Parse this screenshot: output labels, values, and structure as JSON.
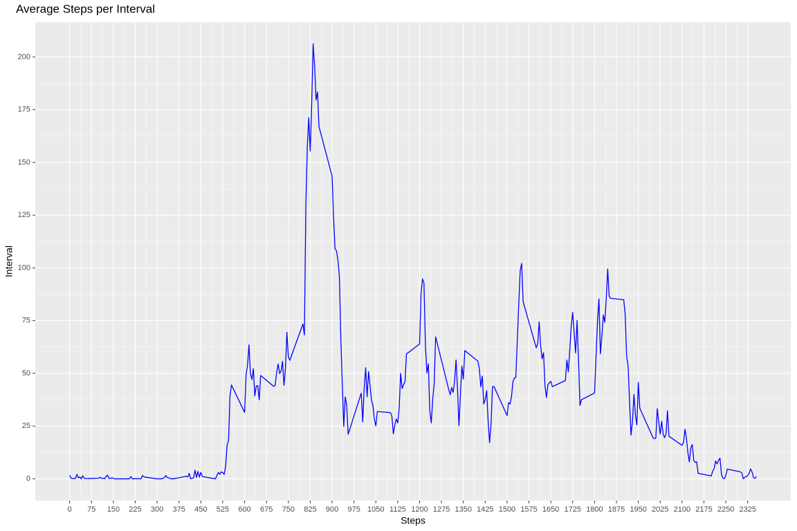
{
  "chart_data": {
    "type": "line",
    "title": "Average Steps per Interval",
    "x_label": "Steps",
    "y_label": "Interval",
    "x": [
      0,
      5,
      10,
      15,
      20,
      25,
      30,
      35,
      40,
      45,
      50,
      55,
      100,
      105,
      110,
      115,
      120,
      125,
      130,
      135,
      140,
      145,
      150,
      155,
      200,
      205,
      210,
      215,
      220,
      225,
      230,
      235,
      240,
      245,
      250,
      255,
      300,
      305,
      310,
      315,
      320,
      325,
      330,
      335,
      340,
      345,
      350,
      355,
      400,
      405,
      410,
      415,
      420,
      425,
      430,
      435,
      440,
      445,
      450,
      455,
      500,
      505,
      510,
      515,
      520,
      525,
      530,
      535,
      540,
      545,
      550,
      555,
      600,
      605,
      610,
      615,
      620,
      625,
      630,
      635,
      640,
      645,
      650,
      655,
      700,
      705,
      710,
      715,
      720,
      725,
      730,
      735,
      740,
      745,
      750,
      755,
      800,
      805,
      810,
      815,
      820,
      825,
      830,
      835,
      840,
      845,
      850,
      855,
      900,
      905,
      910,
      915,
      920,
      925,
      930,
      935,
      940,
      945,
      950,
      955,
      1000,
      1005,
      1010,
      1015,
      1020,
      1025,
      1030,
      1035,
      1040,
      1045,
      1050,
      1055,
      1100,
      1105,
      1110,
      1115,
      1120,
      1125,
      1130,
      1135,
      1140,
      1145,
      1150,
      1155,
      1200,
      1205,
      1210,
      1215,
      1220,
      1225,
      1230,
      1235,
      1240,
      1245,
      1250,
      1255,
      1300,
      1305,
      1310,
      1315,
      1320,
      1325,
      1330,
      1335,
      1340,
      1345,
      1350,
      1355,
      1400,
      1405,
      1410,
      1415,
      1420,
      1425,
      1430,
      1435,
      1440,
      1445,
      1450,
      1455,
      1500,
      1505,
      1510,
      1515,
      1520,
      1525,
      1530,
      1535,
      1540,
      1545,
      1550,
      1555,
      1600,
      1605,
      1610,
      1615,
      1620,
      1625,
      1630,
      1635,
      1640,
      1645,
      1650,
      1655,
      1700,
      1705,
      1710,
      1715,
      1720,
      1725,
      1730,
      1735,
      1740,
      1745,
      1750,
      1755,
      1800,
      1805,
      1810,
      1815,
      1820,
      1825,
      1830,
      1835,
      1840,
      1845,
      1850,
      1855,
      1900,
      1905,
      1910,
      1915,
      1920,
      1925,
      1930,
      1935,
      1940,
      1945,
      1950,
      1955,
      2000,
      2005,
      2010,
      2015,
      2020,
      2025,
      2030,
      2035,
      2040,
      2045,
      2050,
      2055,
      2100,
      2105,
      2110,
      2115,
      2120,
      2125,
      2130,
      2135,
      2140,
      2145,
      2150,
      2155,
      2200,
      2205,
      2210,
      2215,
      2220,
      2225,
      2230,
      2235,
      2240,
      2245,
      2250,
      2255,
      2300,
      2305,
      2310,
      2315,
      2320,
      2325,
      2330,
      2335,
      2340,
      2345,
      2350,
      2355
    ],
    "series": [
      {
        "color": "#0000ff",
        "values": [
          1.7,
          0.3,
          0.1,
          0.2,
          0.1,
          2.1,
          0.5,
          0.9,
          0,
          1.5,
          0.3,
          0.1,
          0.3,
          0.7,
          0.2,
          0.3,
          0,
          1.1,
          1.8,
          0.2,
          0.2,
          0.4,
          0.3,
          0,
          0,
          0,
          1.1,
          0,
          0,
          0.1,
          0,
          0.2,
          0,
          0,
          1.6,
          0.9,
          0,
          0,
          0,
          0,
          0.2,
          0.6,
          1.6,
          0.6,
          0.5,
          0.1,
          0,
          0,
          1.2,
          0.9,
          2.6,
          0,
          0.3,
          0.4,
          4.1,
          0.7,
          3.5,
          0.8,
          3.1,
          1.1,
          0,
          1.6,
          3,
          2.2,
          3.3,
          3,
          2.1,
          6.1,
          16,
          18.3,
          39.5,
          44.5,
          31.5,
          49.3,
          53.8,
          63.5,
          50,
          47.1,
          52.2,
          39.3,
          44,
          44.2,
          37.4,
          49,
          43.8,
          44.4,
          50.5,
          54.5,
          49.9,
          51,
          55.7,
          44.3,
          52.3,
          69.5,
          57.8,
          56.2,
          73.4,
          68.2,
          129.4,
          157.5,
          171.2,
          155.4,
          177.3,
          206.2,
          195.9,
          179.6,
          183.4,
          167,
          143.5,
          124,
          109.1,
          108.1,
          103.7,
          96,
          66.2,
          45.2,
          24.8,
          38.8,
          35,
          21.1,
          40.6,
          27,
          42.4,
          52.7,
          38.9,
          50.8,
          44.3,
          37.4,
          34.7,
          28.3,
          25.1,
          31.9,
          31.4,
          29.7,
          21.3,
          25.5,
          28.4,
          26.5,
          33.4,
          50,
          42.8,
          44.7,
          46,
          59.2,
          63.9,
          87.7,
          94.8,
          92.8,
          63.4,
          50.2,
          54.5,
          32.4,
          26.5,
          37.7,
          45.1,
          67.3,
          42.3,
          39.9,
          43.3,
          41,
          46.2,
          56.4,
          42.8,
          25.1,
          40,
          53.5,
          47.3,
          60.8,
          55.8,
          52,
          43.6,
          48.7,
          35.5,
          37.5,
          41.8,
          27.5,
          17.1,
          26.1,
          43.6,
          43.8,
          30,
          36.1,
          35.5,
          38.8,
          46,
          47.8,
          48.1,
          65.3,
          82.9,
          98.7,
          102.1,
          84,
          62.1,
          64.1,
          74.5,
          63.2,
          56.9,
          59.8,
          43.9,
          38.6,
          44.7,
          45.5,
          46.2,
          43.7,
          46.6,
          56.3,
          50.7,
          61.2,
          72.7,
          78.9,
          68.9,
          59.7,
          75.1,
          56.5,
          34.8,
          37.5,
          40.7,
          58,
          74.7,
          85.3,
          59.3,
          67.8,
          77.7,
          74.2,
          85.3,
          99.5,
          86.6,
          85.6,
          84.9,
          77.8,
          58,
          53.4,
          36.3,
          20.7,
          27.4,
          40,
          30.2,
          25.5,
          45.7,
          33.5,
          19.6,
          19,
          19.3,
          33.3,
          26.8,
          21.2,
          27.3,
          21.3,
          19.5,
          21.3,
          32.3,
          20.2,
          15.9,
          17.2,
          23.5,
          19.2,
          12.5,
          8,
          14.7,
          16.3,
          8.7,
          7.8,
          8.1,
          2.6,
          1.4,
          3.7,
          4.8,
          8.5,
          7.1,
          8.7,
          9.8,
          2.2,
          0.3,
          0.1,
          1.6,
          4.6,
          3.3,
          2.8,
          0,
          0.8,
          1,
          1.6,
          2.6,
          4.7,
          3.3,
          0.6,
          0.2,
          1.1
        ]
      }
    ],
    "xlim": [
      -117.75,
      2472.75
    ],
    "ylim": [
      -10.3,
      216.5
    ],
    "xticks": [
      0,
      75,
      150,
      225,
      300,
      375,
      450,
      525,
      600,
      675,
      750,
      825,
      900,
      975,
      1050,
      1125,
      1200,
      1275,
      1350,
      1425,
      1500,
      1575,
      1650,
      1725,
      1800,
      1875,
      1950,
      2025,
      2100,
      2175,
      2250,
      2325
    ],
    "yticks": [
      0,
      25,
      50,
      75,
      100,
      125,
      150,
      175,
      200
    ],
    "grid": true
  }
}
